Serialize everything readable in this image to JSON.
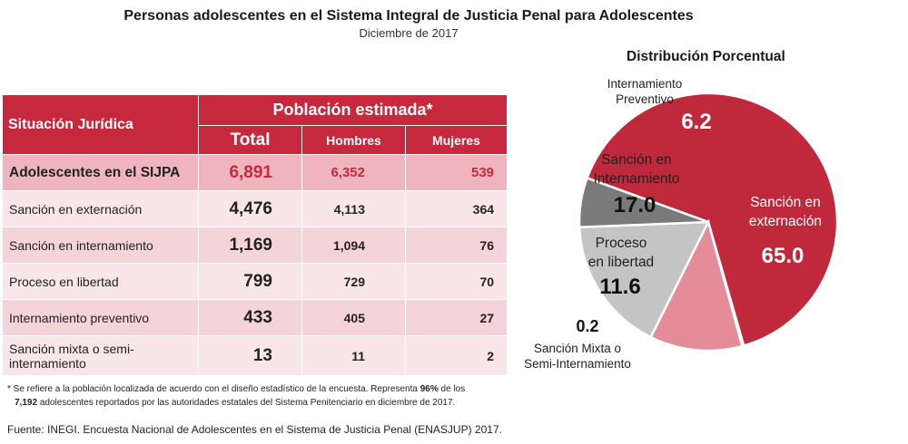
{
  "header": {
    "title": "Personas adolescentes en el Sistema Integral de Justicia Penal para Adolescentes",
    "subtitle": "Diciembre de 2017"
  },
  "table": {
    "col_situacion": "Situación Jurídica",
    "col_poblacion": "Población estimada*",
    "col_total": "Total",
    "col_hombres": "Hombres",
    "col_mujeres": "Mujeres",
    "rows": [
      {
        "name": "Adolescentes en el SIJPA",
        "total": "6,891",
        "hombres": "6,352",
        "mujeres": "539"
      },
      {
        "name": "Sanción en externación",
        "total": "4,476",
        "hombres": "4,113",
        "mujeres": "364"
      },
      {
        "name": "Sanción en internamiento",
        "total": "1,169",
        "hombres": "1,094",
        "mujeres": "76"
      },
      {
        "name": "Proceso en libertad",
        "total": "799",
        "hombres": "729",
        "mujeres": "70"
      },
      {
        "name": "Internamiento preventivo",
        "total": "433",
        "hombres": "405",
        "mujeres": "27"
      },
      {
        "name": "Sanción mixta o semi-internamiento",
        "total": "13",
        "hombres": "11",
        "mujeres": "2"
      }
    ]
  },
  "footnote": {
    "a": "* Se refiere a la población localizada de acuerdo con el diseño estadístico de la encuesta. Representa",
    "pct": "96%",
    "b": "de los",
    "count": "7,192",
    "c": "adolescentes reportados por las autoridades estatales del Sistema Penitenciario en diciembre de 2017."
  },
  "source": "Fuente: INEGI. Encuesta Nacional de Adolescentes en el Sistema de Justicia Penal (ENASJUP) 2017.",
  "chart_data": {
    "type": "pie",
    "title": "Distribución Porcentual",
    "slices": [
      {
        "label": "Sanción en externación",
        "label_lines": [
          "Sanción en",
          "externación"
        ],
        "value": 65.0,
        "value_label": "65.0",
        "color": "#c0283c"
      },
      {
        "label": "Sanción Mixta o Semi-Internamiento",
        "label_lines": [
          "Sanción Mixta o",
          "Semi-Internamiento"
        ],
        "value": 0.2,
        "value_label": "0.2",
        "color": "#e8e8e8"
      },
      {
        "label": "Proceso en libertad",
        "label_lines": [
          "Proceso",
          "en libertad"
        ],
        "value": 11.6,
        "value_label": "11.6",
        "color": "#e48c98"
      },
      {
        "label": "Sanción en Internamiento",
        "label_lines": [
          "Sanción en",
          "Internamiento"
        ],
        "value": 17.0,
        "value_label": "17.0",
        "color": "#c4c4c4"
      },
      {
        "label": "Internamiento Preventivo",
        "label_lines": [
          "Internamiento",
          "Preventivo"
        ],
        "value": 6.2,
        "value_label": "6.2",
        "color": "#7a7a7a"
      }
    ]
  }
}
